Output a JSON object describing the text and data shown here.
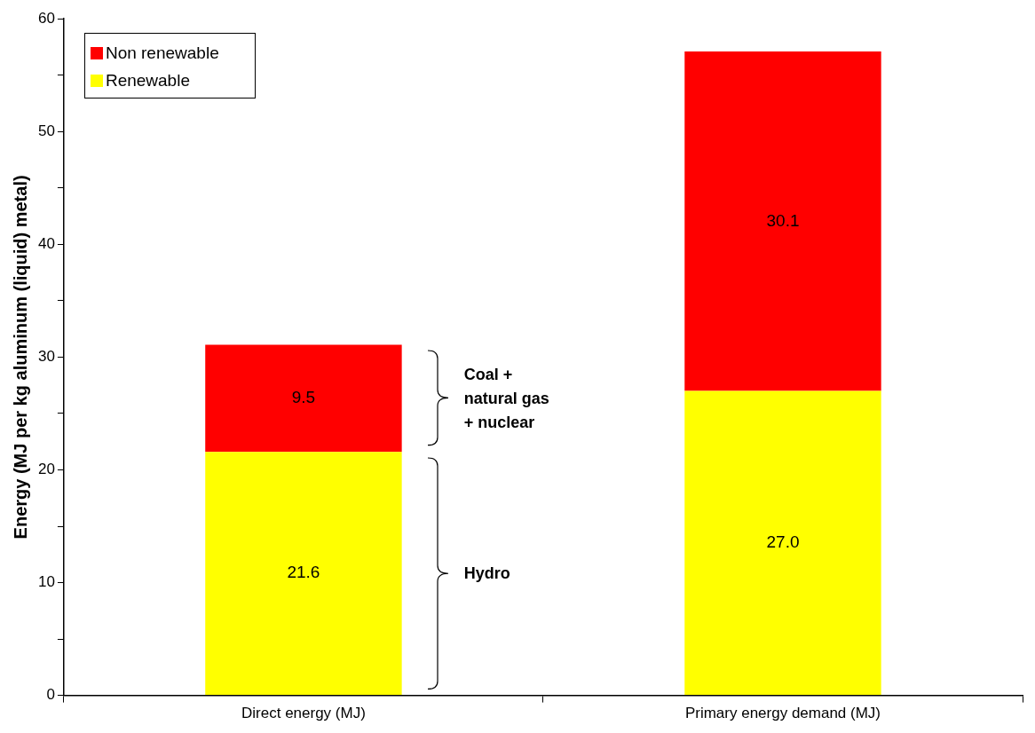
{
  "chart_data": {
    "type": "bar",
    "stacked": true,
    "ylabel": "Energy (MJ per kg aluminum (liquid) metal)",
    "categories": [
      "Direct energy (MJ)",
      "Primary energy demand (MJ)"
    ],
    "series": [
      {
        "name": "Renewable",
        "color": "#ffff00",
        "values": [
          21.6,
          27.0
        ],
        "value_labels": [
          "21.6",
          "27.0"
        ]
      },
      {
        "name": "Non renewable",
        "color": "#ff0000",
        "values": [
          9.5,
          30.1
        ],
        "value_labels": [
          "9.5",
          "30.1"
        ]
      }
    ],
    "ylim": [
      0,
      60
    ],
    "yticks": [
      0,
      {
        "value": 5,
        "label": null
      },
      10,
      {
        "value": 15,
        "label": null
      },
      20,
      {
        "value": 25,
        "label": null
      },
      30,
      {
        "value": 35,
        "label": null
      },
      40,
      {
        "value": 45,
        "label": null
      },
      50,
      {
        "value": 55,
        "label": null
      },
      60
    ],
    "grid": false,
    "legend": "top left",
    "annotations": [
      "Coal + natural gas + nuclear",
      "Hydro"
    ]
  }
}
